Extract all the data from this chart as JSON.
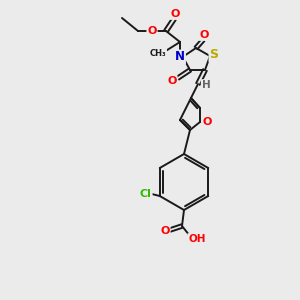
{
  "bg_color": "#ebebeb",
  "atom_colors": {
    "O": "#ff0000",
    "N": "#0000cc",
    "S": "#bbaa00",
    "Cl": "#33bb00",
    "C": "#1a1a1a",
    "H": "#666666"
  },
  "bond_color": "#1a1a1a"
}
